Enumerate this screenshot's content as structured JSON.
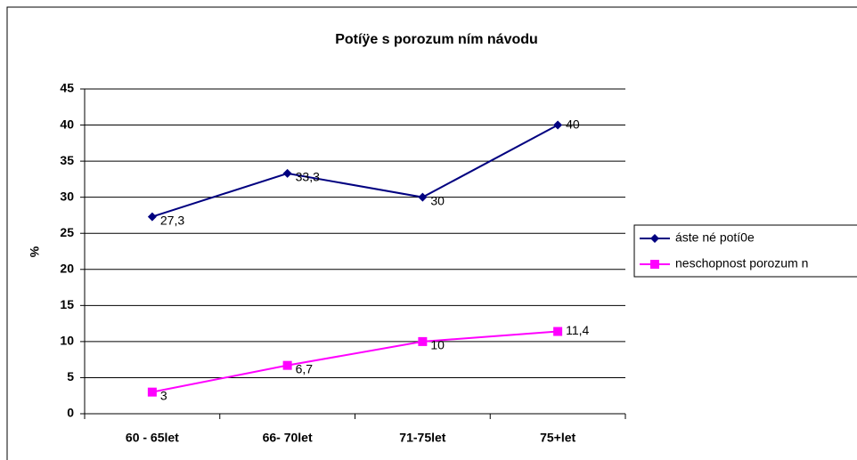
{
  "chart_data": {
    "type": "line",
    "title": "Potíÿe s porozum  ním návodu",
    "ylabel": "%",
    "categories": [
      "60 - 65let",
      "66- 70let",
      "71-75let",
      "75+let"
    ],
    "series": [
      {
        "name": "áste  né potí0e",
        "color": "#000080",
        "marker": "diamond",
        "values": [
          27.3,
          33.3,
          30,
          40
        ],
        "value_labels": [
          "27,3",
          "33,3",
          "30",
          "40"
        ]
      },
      {
        "name": "neschopnost porozum  n",
        "color": "#ff00ff",
        "marker": "square",
        "values": [
          3,
          6.7,
          10,
          11.4
        ],
        "value_labels": [
          "3",
          "6,7",
          "10",
          "11,4"
        ]
      }
    ],
    "ylim": [
      0,
      45
    ],
    "yticks": [
      0,
      5,
      10,
      15,
      20,
      25,
      30,
      35,
      40,
      45
    ],
    "grid": true,
    "legend": "right"
  }
}
